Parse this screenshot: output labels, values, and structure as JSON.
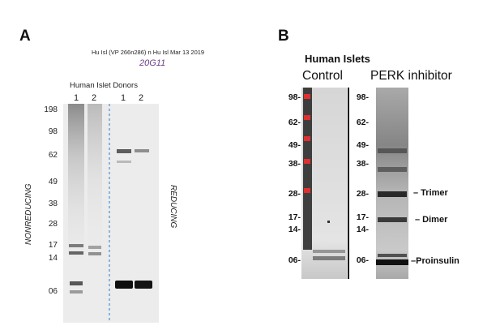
{
  "panelA": {
    "letter": "A",
    "header": "Hu Isl (VP 266n286) n Hu Isl  Mar 13 2019",
    "clone": "20G11",
    "donors_label": "Human Islet Donors",
    "lanes": [
      "1",
      "2",
      "1",
      "2"
    ],
    "left_label": "NONREDUCING",
    "right_label": "REDUCING",
    "markers": [
      "198",
      "98",
      "62",
      "49",
      "38",
      "28",
      "17",
      "14",
      "06"
    ],
    "divider_color": "#4a8fd0"
  },
  "panelB": {
    "letter": "B",
    "title": "Human Islets",
    "groups": [
      "Control",
      "PERK inhibitor"
    ],
    "markers_left": [
      "98-",
      "62-",
      "49-",
      "38-",
      "28-",
      "17-",
      "14-",
      "06-"
    ],
    "markers_right": [
      "98-",
      "62-",
      "49-",
      "38-",
      "28-",
      "17-",
      "14-",
      "06-"
    ],
    "band_labels": [
      "– Trimer",
      "– Dimer",
      "–Proinsulin"
    ],
    "ladder_color": "#e03030"
  }
}
